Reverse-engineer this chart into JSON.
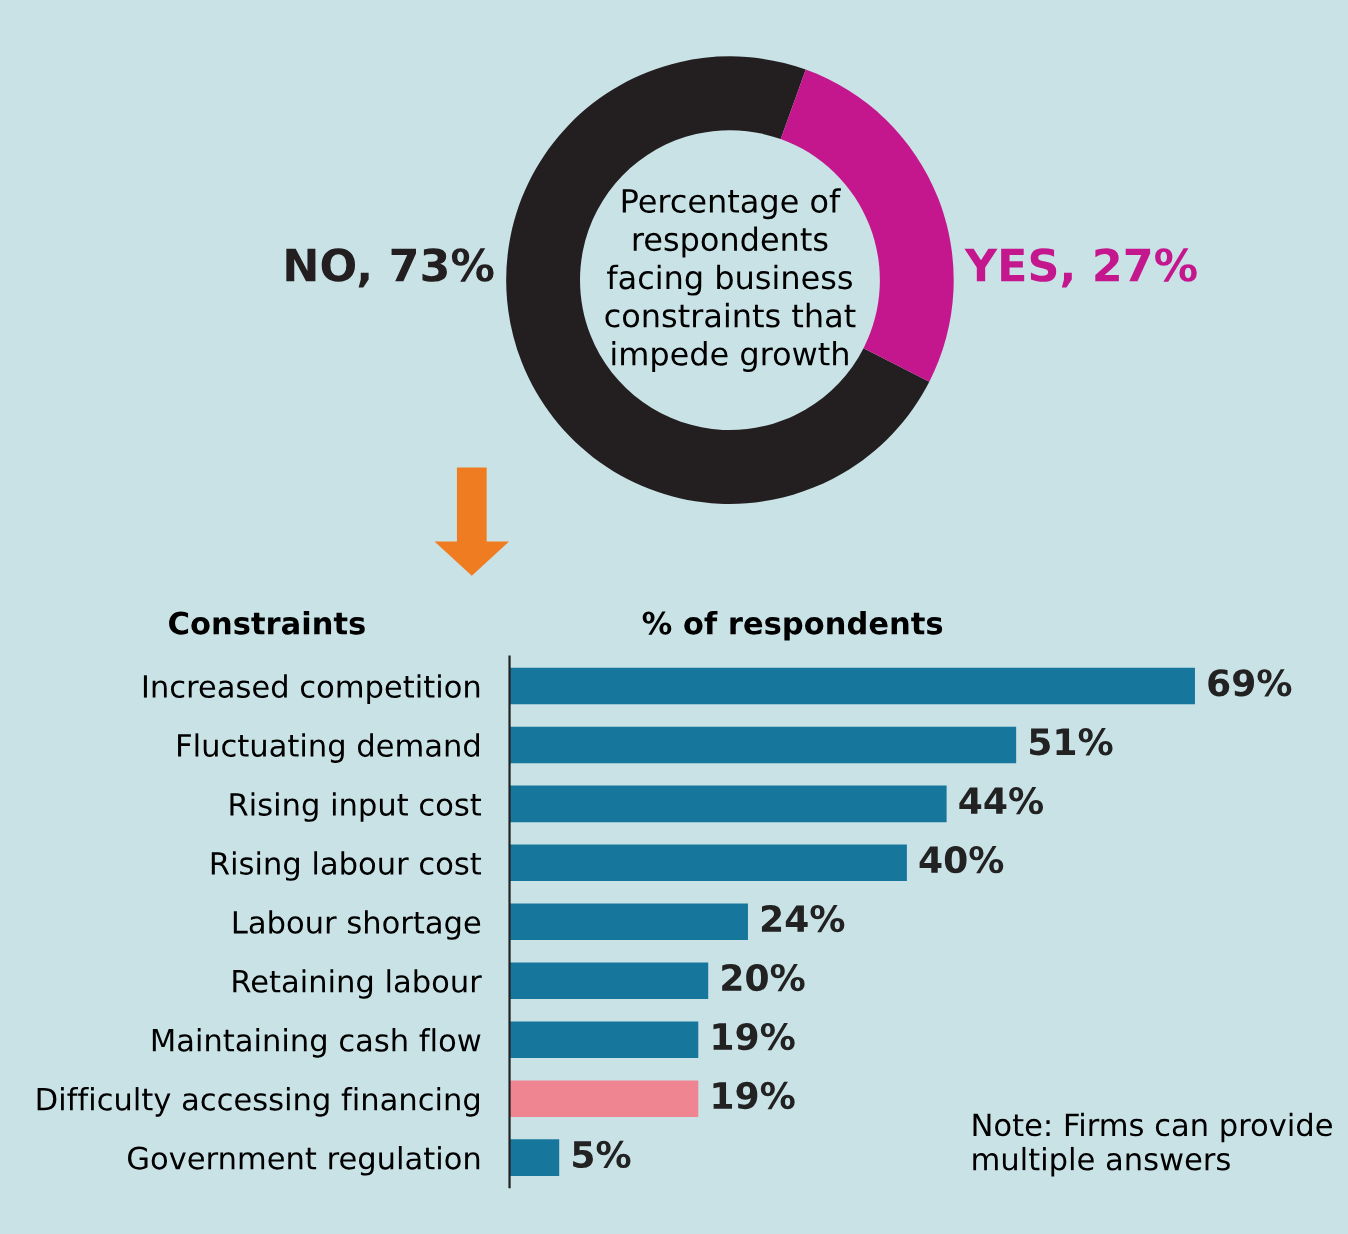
{
  "chart_data": [
    {
      "type": "donut",
      "title": "Percentage of\nrespondents\nfacing business\nconstraints that\nimpede growth",
      "categories": [
        "NO",
        "YES"
      ],
      "values": [
        73,
        27
      ],
      "colors": [
        "#231f20",
        "#c4178e"
      ],
      "value_labels": [
        "73%",
        "27%"
      ]
    },
    {
      "type": "bar",
      "orientation": "horizontal",
      "ylabel": "Constraints",
      "xlabel": "% of respondents",
      "categories": [
        "Increased competition",
        "Fluctuating demand",
        "Rising input cost",
        "Rising labour cost",
        "Labour shortage",
        "Retaining labour",
        "Maintaining cash flow",
        "Difficulty accessing financing",
        "Government regulation"
      ],
      "values": [
        69,
        51,
        44,
        40,
        24,
        20,
        19,
        19,
        5
      ],
      "colors": [
        "#17769b",
        "#17769b",
        "#17769b",
        "#17769b",
        "#17769b",
        "#17769b",
        "#17769b",
        "#f08592",
        "#17769b"
      ],
      "value_labels": [
        "69%",
        "51%",
        "44%",
        "40%",
        "24%",
        "20%",
        "19%",
        "19%",
        "5%"
      ],
      "annotations": [
        "Note: Firms can provide multiple answers"
      ]
    }
  ]
}
